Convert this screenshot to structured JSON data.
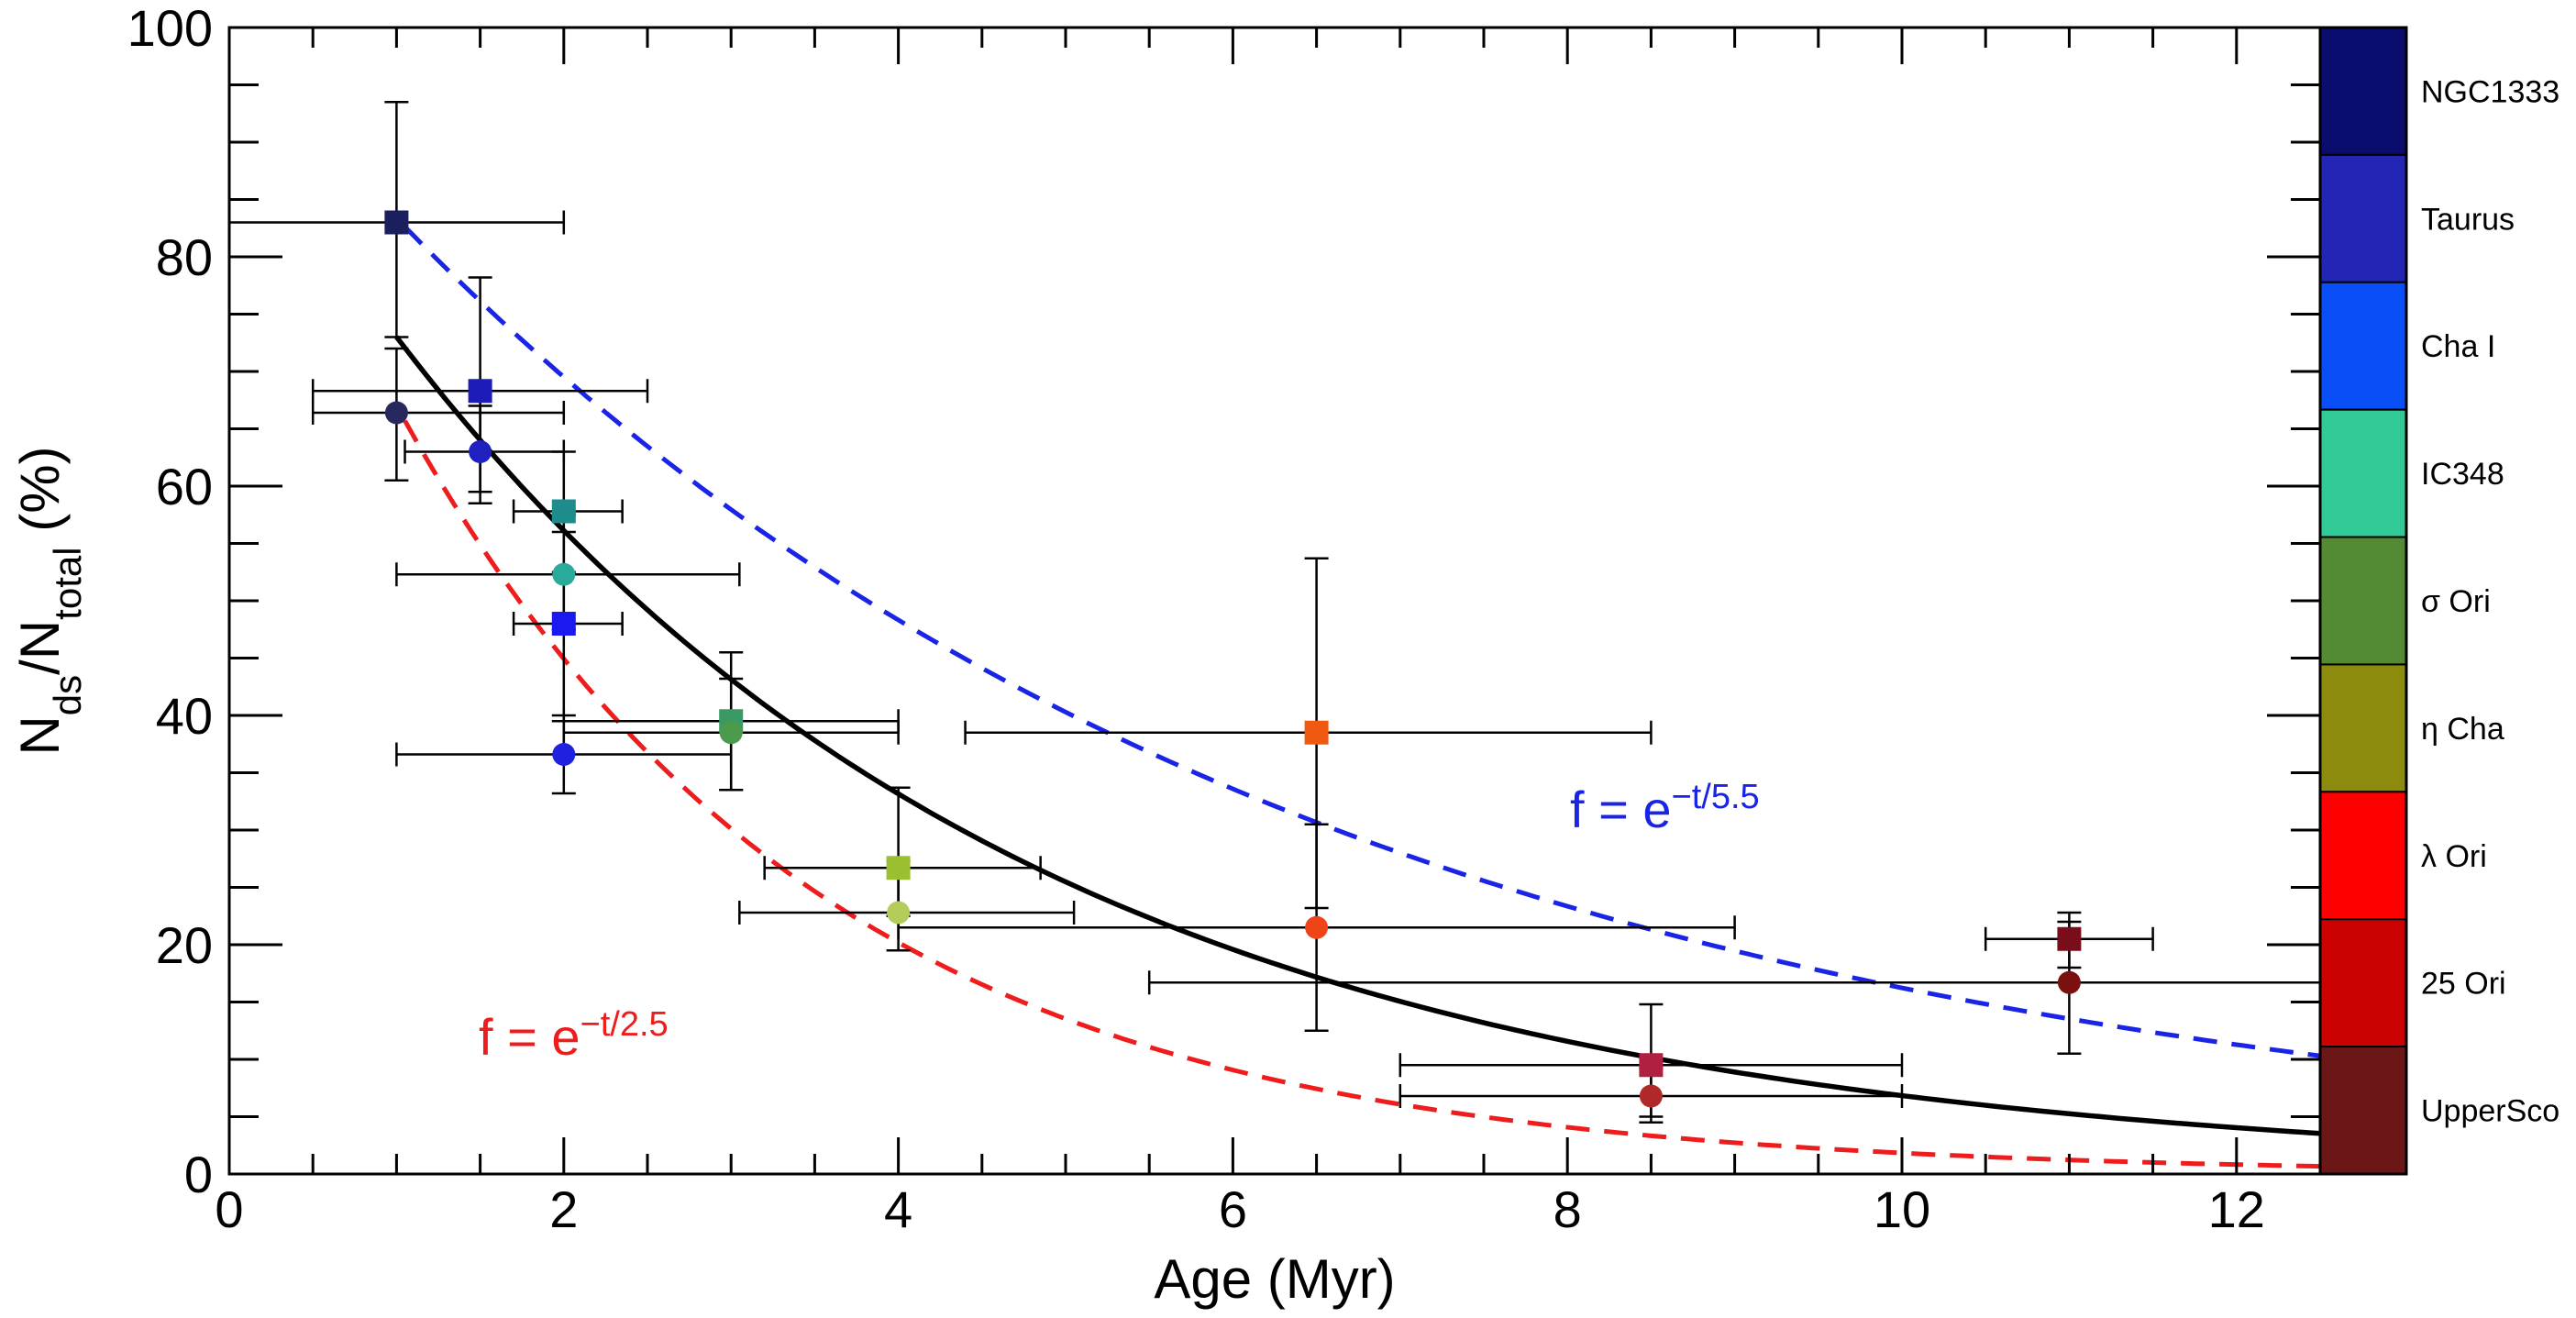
{
  "chart_data": {
    "type": "scatter",
    "xlabel": "Age (Myr)",
    "ylabel": "Nds/Ntotal (%)",
    "ylabel_parts": {
      "base1": "N",
      "sub1": "ds",
      "slash": "/",
      "base2": "N",
      "sub2": "total",
      "unit": " (%)"
    },
    "xlim": [
      0,
      12.5
    ],
    "ylim": [
      0,
      100
    ],
    "x_ticks": [
      0,
      2,
      4,
      6,
      8,
      10,
      12
    ],
    "y_ticks": [
      0,
      20,
      40,
      60,
      80,
      100
    ],
    "x_minor_step": 0.5,
    "y_minor_step": 5,
    "colorbar": [
      {
        "label": "NGC1333",
        "color": "#0b0d6e"
      },
      {
        "label": "Taurus",
        "color": "#2326b5"
      },
      {
        "label": "Cha I",
        "color": "#0a4ef8"
      },
      {
        "label": "IC348",
        "color": "#31ca97"
      },
      {
        "label": "σ Ori",
        "color": "#558a35"
      },
      {
        "label": "η Cha",
        "color": "#8c8b0e"
      },
      {
        "label": "λ Ori",
        "color": "#fe0000"
      },
      {
        "label": "25 Ori",
        "color": "#cc0102"
      },
      {
        "label": "UpperSco",
        "color": "#6c1717"
      }
    ],
    "series": [
      {
        "name": "squares",
        "marker": "square",
        "points": [
          {
            "x": 1.0,
            "y": 83,
            "xerr": [
              0,
              2.0
            ],
            "yerr": [
              73,
              93.5
            ],
            "color": "#1c1f5e"
          },
          {
            "x": 1.5,
            "y": 68.3,
            "xerr": [
              0.5,
              2.5
            ],
            "yerr": [
              58.5,
              78.2
            ],
            "color": "#1e1cb8"
          },
          {
            "x": 2.0,
            "y": 57.8,
            "xerr": [
              1.7,
              2.35
            ],
            "yerr": [
              52.5,
              63
            ],
            "color": "#1e8c8c"
          },
          {
            "x": 2.0,
            "y": 48.0,
            "xerr": [
              1.7,
              2.35
            ],
            "yerr": [
              39.5,
              56
            ],
            "color": "#1a1af0"
          },
          {
            "x": 3.0,
            "y": 39.5,
            "xerr": [
              2.0,
              4.0
            ],
            "yerr": [
              33.5,
              45.5
            ],
            "color": "#3a9a64"
          },
          {
            "x": 4.0,
            "y": 26.7,
            "xerr": [
              3.2,
              4.85
            ],
            "yerr": [
              22.5,
              33.7
            ],
            "color": "#9ac032"
          },
          {
            "x": 6.5,
            "y": 38.5,
            "xerr": [
              4.4,
              8.5
            ],
            "yerr": [
              23.2,
              53.7
            ],
            "color": "#ef5a10"
          },
          {
            "x": 8.5,
            "y": 9.5,
            "xerr": [
              7.0,
              10.0
            ],
            "yerr": [
              5.0,
              14.8
            ],
            "color": "#b02040"
          },
          {
            "x": 11.0,
            "y": 20.5,
            "xerr": [
              10.5,
              11.5
            ],
            "yerr": [
              18.0,
              22.8
            ],
            "color": "#7a0d1a"
          }
        ]
      },
      {
        "name": "circles",
        "marker": "circle",
        "points": [
          {
            "x": 1.0,
            "y": 66.4,
            "xerr": [
              0.5,
              2.0
            ],
            "yerr": [
              60.5,
              72.0
            ],
            "color": "#26285e"
          },
          {
            "x": 1.5,
            "y": 63.0,
            "xerr": [
              1.05,
              2.0
            ],
            "yerr": [
              59.5,
              67.0
            ],
            "color": "#2020c0"
          },
          {
            "x": 2.0,
            "y": 52.3,
            "xerr": [
              1.0,
              3.05
            ],
            "yerr": [
              47.5,
              57.5
            ],
            "color": "#2aaa9a"
          },
          {
            "x": 2.0,
            "y": 36.6,
            "xerr": [
              1.0,
              3.0
            ],
            "yerr": [
              33.2,
              40.0
            ],
            "color": "#2020e0"
          },
          {
            "x": 3.0,
            "y": 38.5,
            "xerr": [
              2.0,
              4.0
            ],
            "yerr": [
              33.5,
              43.2
            ],
            "color": "#4c9a4c"
          },
          {
            "x": 4.0,
            "y": 22.8,
            "xerr": [
              3.05,
              5.05
            ],
            "yerr": [
              19.5,
              27.3
            ],
            "color": "#b4cc5a"
          },
          {
            "x": 6.5,
            "y": 21.5,
            "xerr": [
              4.0,
              9.0
            ],
            "yerr": [
              12.5,
              30.5
            ],
            "color": "#ee4418"
          },
          {
            "x": 8.5,
            "y": 6.8,
            "xerr": [
              7.0,
              10.0
            ],
            "yerr": [
              4.5,
              9.2
            ],
            "color": "#b02828"
          },
          {
            "x": 11.0,
            "y": 16.7,
            "xerr": [
              5.5,
              12.5
            ],
            "yerr": [
              10.5,
              22.0
            ],
            "color": "#7a1010"
          }
        ]
      }
    ],
    "curves": [
      {
        "name": "black-fit",
        "tau": 3.8,
        "amplitude": 95,
        "from": 1.0,
        "to": 12.5,
        "color": "#000000",
        "dashed": false
      },
      {
        "name": "blue-fit",
        "tau": 5.5,
        "amplitude": 100,
        "from": 1.05,
        "to": 12.5,
        "color": "#1a24e6",
        "dashed": true
      },
      {
        "name": "red-fit",
        "tau": 2.5,
        "amplitude": 100,
        "from": 1.05,
        "to": 12.5,
        "color": "#ee1c1c",
        "dashed": true
      }
    ],
    "annotations": [
      {
        "base": "f = e",
        "sup": "−t/5.5",
        "color": "#1a24e6"
      },
      {
        "base": "f = e",
        "sup": "−t/2.5",
        "color": "#ee1c1c"
      }
    ]
  }
}
